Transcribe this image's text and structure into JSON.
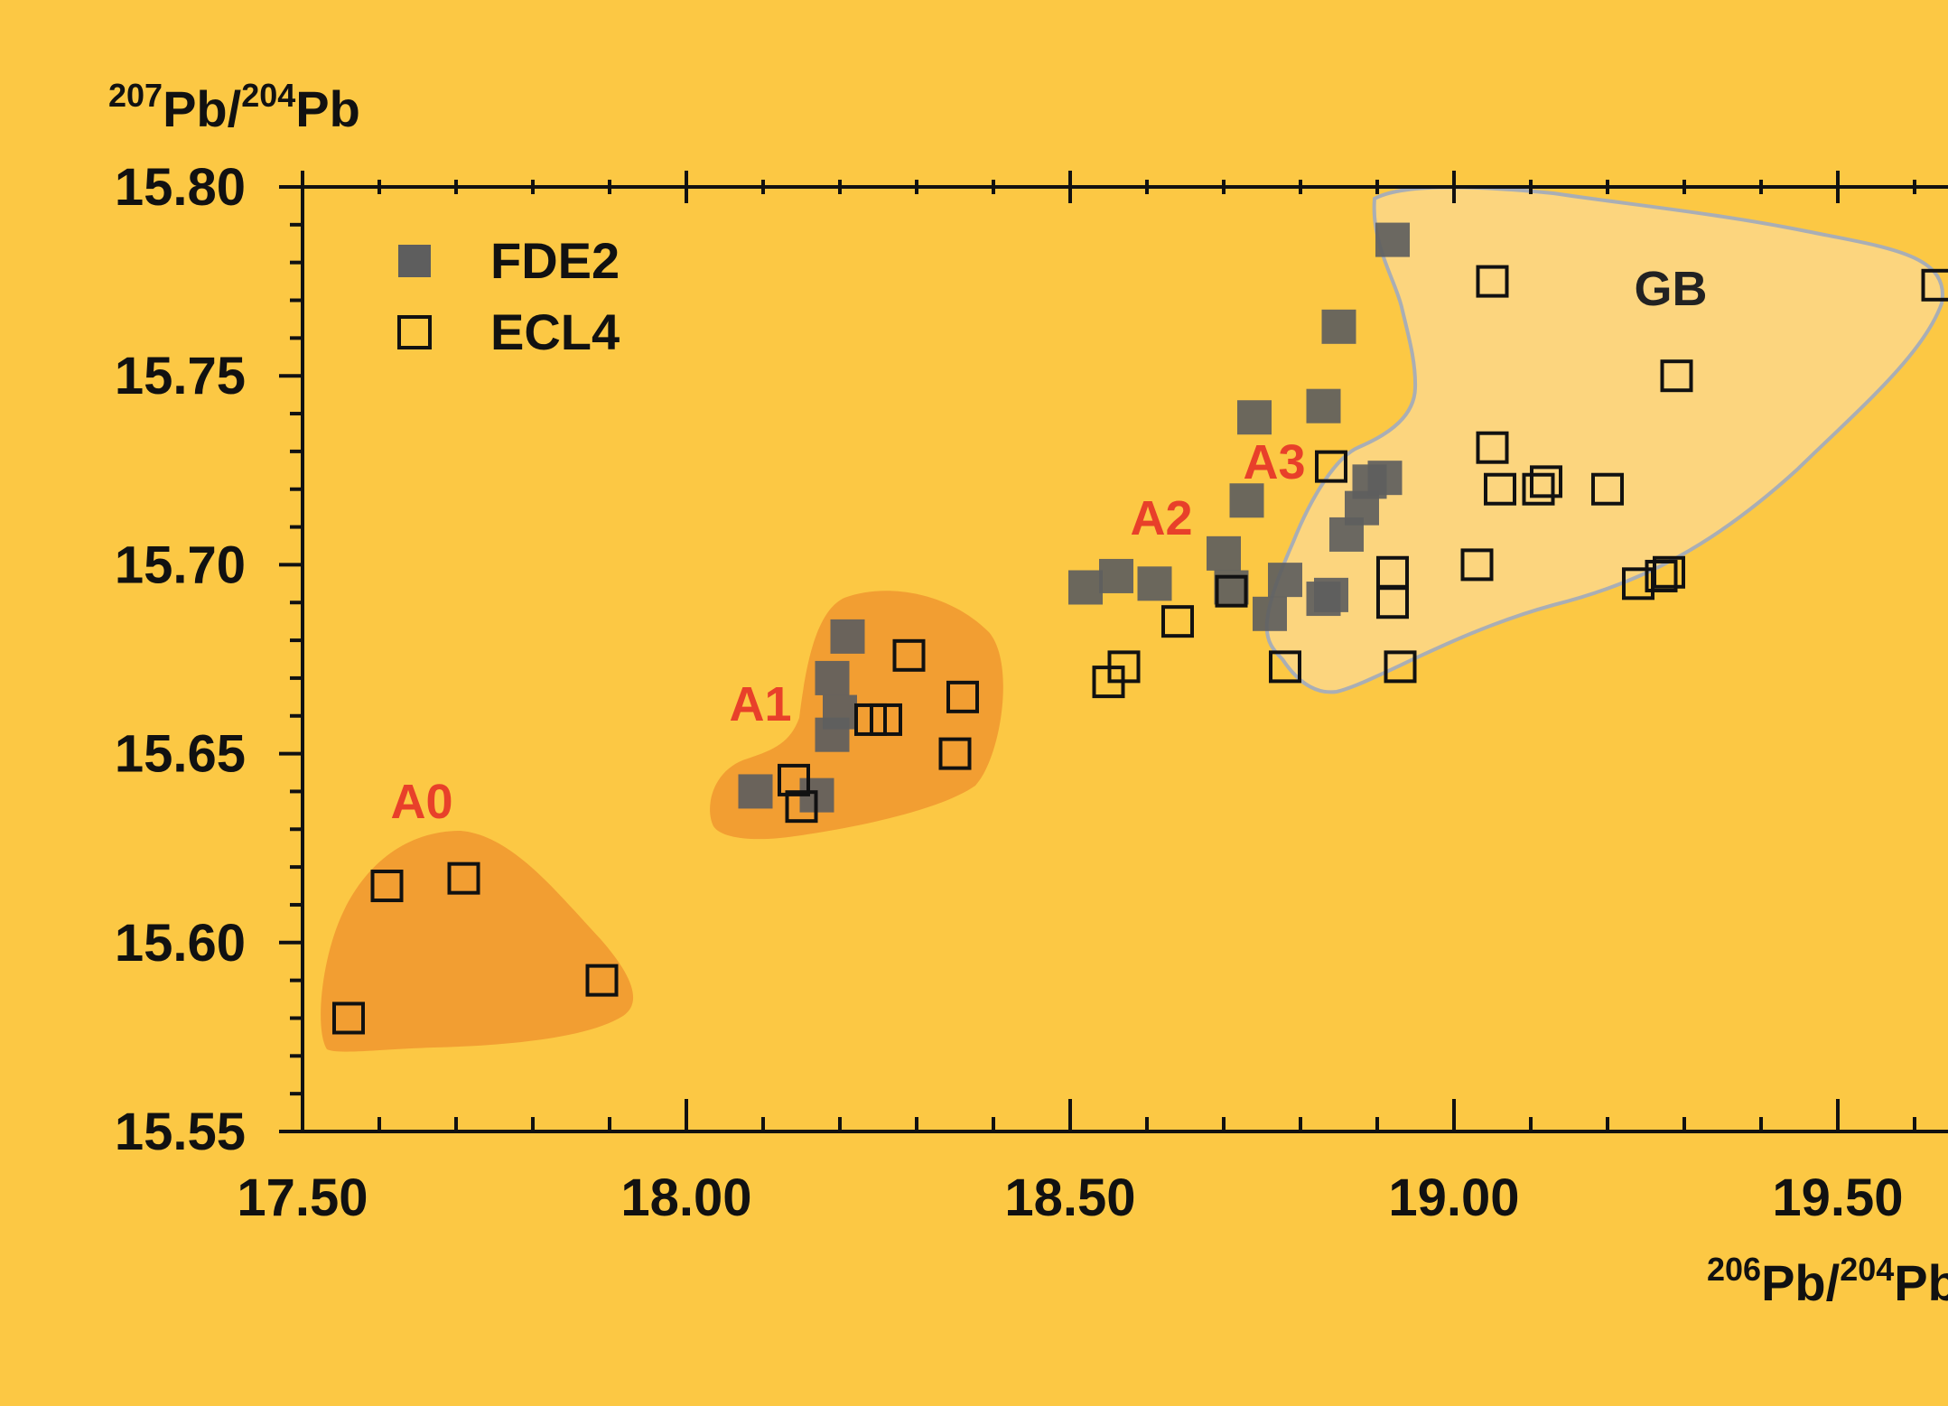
{
  "colors": {
    "background": "#FCC844",
    "axis": "#111111",
    "fde2_fill": "#5E5E5E",
    "ecl4_stroke": "#111111",
    "field_orange": "#F29E32",
    "field_gb": "#FCD57E",
    "field_gb_stroke": "#A9AEB5",
    "region_label_red": "#E8402A",
    "region_label_dark": "#222222"
  },
  "chart_data": {
    "type": "scatter",
    "xlabel": {
      "sup1": "206",
      "t1": "Pb/",
      "sup2": "204",
      "t2": "Pb"
    },
    "ylabel": {
      "sup1": "207",
      "t1": "Pb/",
      "sup2": "204",
      "t2": "Pb"
    },
    "xlim": [
      17.5,
      19.64
    ],
    "ylim": [
      15.55,
      15.8
    ],
    "x_ticks": [
      "17.50",
      "18.00",
      "18.50",
      "19.00",
      "19.50"
    ],
    "x_tick_values": [
      17.5,
      18.0,
      18.5,
      19.0,
      19.5
    ],
    "y_ticks": [
      "15.80",
      "15.75",
      "15.70",
      "15.65",
      "15.60",
      "15.55"
    ],
    "y_tick_values": [
      15.8,
      15.75,
      15.7,
      15.65,
      15.6,
      15.55
    ],
    "legend_position": "top-left",
    "legend": [
      {
        "label": "FDE2",
        "marker": "filled-square"
      },
      {
        "label": "ECL4",
        "marker": "open-square"
      }
    ],
    "series": [
      {
        "name": "FDE2",
        "marker": "filled-square",
        "points": [
          [
            18.09,
            15.64
          ],
          [
            18.17,
            15.639
          ],
          [
            18.19,
            15.655
          ],
          [
            18.2,
            15.661
          ],
          [
            18.19,
            15.67
          ],
          [
            18.21,
            15.681
          ],
          [
            18.52,
            15.694
          ],
          [
            18.56,
            15.697
          ],
          [
            18.61,
            15.695
          ],
          [
            18.7,
            15.703
          ],
          [
            18.71,
            15.694
          ],
          [
            18.73,
            15.717
          ],
          [
            18.74,
            15.739
          ],
          [
            18.76,
            15.687
          ],
          [
            18.78,
            15.696
          ],
          [
            18.83,
            15.691
          ],
          [
            18.84,
            15.692
          ],
          [
            18.83,
            15.742
          ],
          [
            18.85,
            15.763
          ],
          [
            18.86,
            15.708
          ],
          [
            18.88,
            15.715
          ],
          [
            18.89,
            15.722
          ],
          [
            18.91,
            15.723
          ],
          [
            18.92,
            15.786
          ]
        ]
      },
      {
        "name": "ECL4",
        "marker": "open-square",
        "points": [
          [
            17.56,
            15.58
          ],
          [
            17.61,
            15.615
          ],
          [
            17.71,
            15.617
          ],
          [
            17.89,
            15.59
          ],
          [
            18.14,
            15.643
          ],
          [
            18.15,
            15.636
          ],
          [
            18.24,
            15.659
          ],
          [
            18.26,
            15.659
          ],
          [
            18.29,
            15.676
          ],
          [
            18.35,
            15.65
          ],
          [
            18.36,
            15.665
          ],
          [
            18.55,
            15.669
          ],
          [
            18.57,
            15.673
          ],
          [
            18.64,
            15.685
          ],
          [
            18.71,
            15.693
          ],
          [
            18.78,
            15.673
          ],
          [
            18.84,
            15.726
          ],
          [
            18.92,
            15.698
          ],
          [
            18.92,
            15.69
          ],
          [
            18.93,
            15.673
          ],
          [
            19.03,
            15.7
          ],
          [
            19.05,
            15.775
          ],
          [
            19.05,
            15.731
          ],
          [
            19.06,
            15.72
          ],
          [
            19.11,
            15.72
          ],
          [
            19.12,
            15.722
          ],
          [
            19.2,
            15.72
          ],
          [
            19.24,
            15.695
          ],
          [
            19.27,
            15.697
          ],
          [
            19.28,
            15.698
          ],
          [
            19.29,
            15.75
          ],
          [
            19.63,
            15.774
          ]
        ]
      }
    ],
    "regions": [
      {
        "label": "A0",
        "label_color": "red"
      },
      {
        "label": "A1",
        "label_color": "red"
      },
      {
        "label": "A2",
        "label_color": "red"
      },
      {
        "label": "A3",
        "label_color": "red"
      },
      {
        "label": "GB",
        "label_color": "dark"
      }
    ]
  }
}
